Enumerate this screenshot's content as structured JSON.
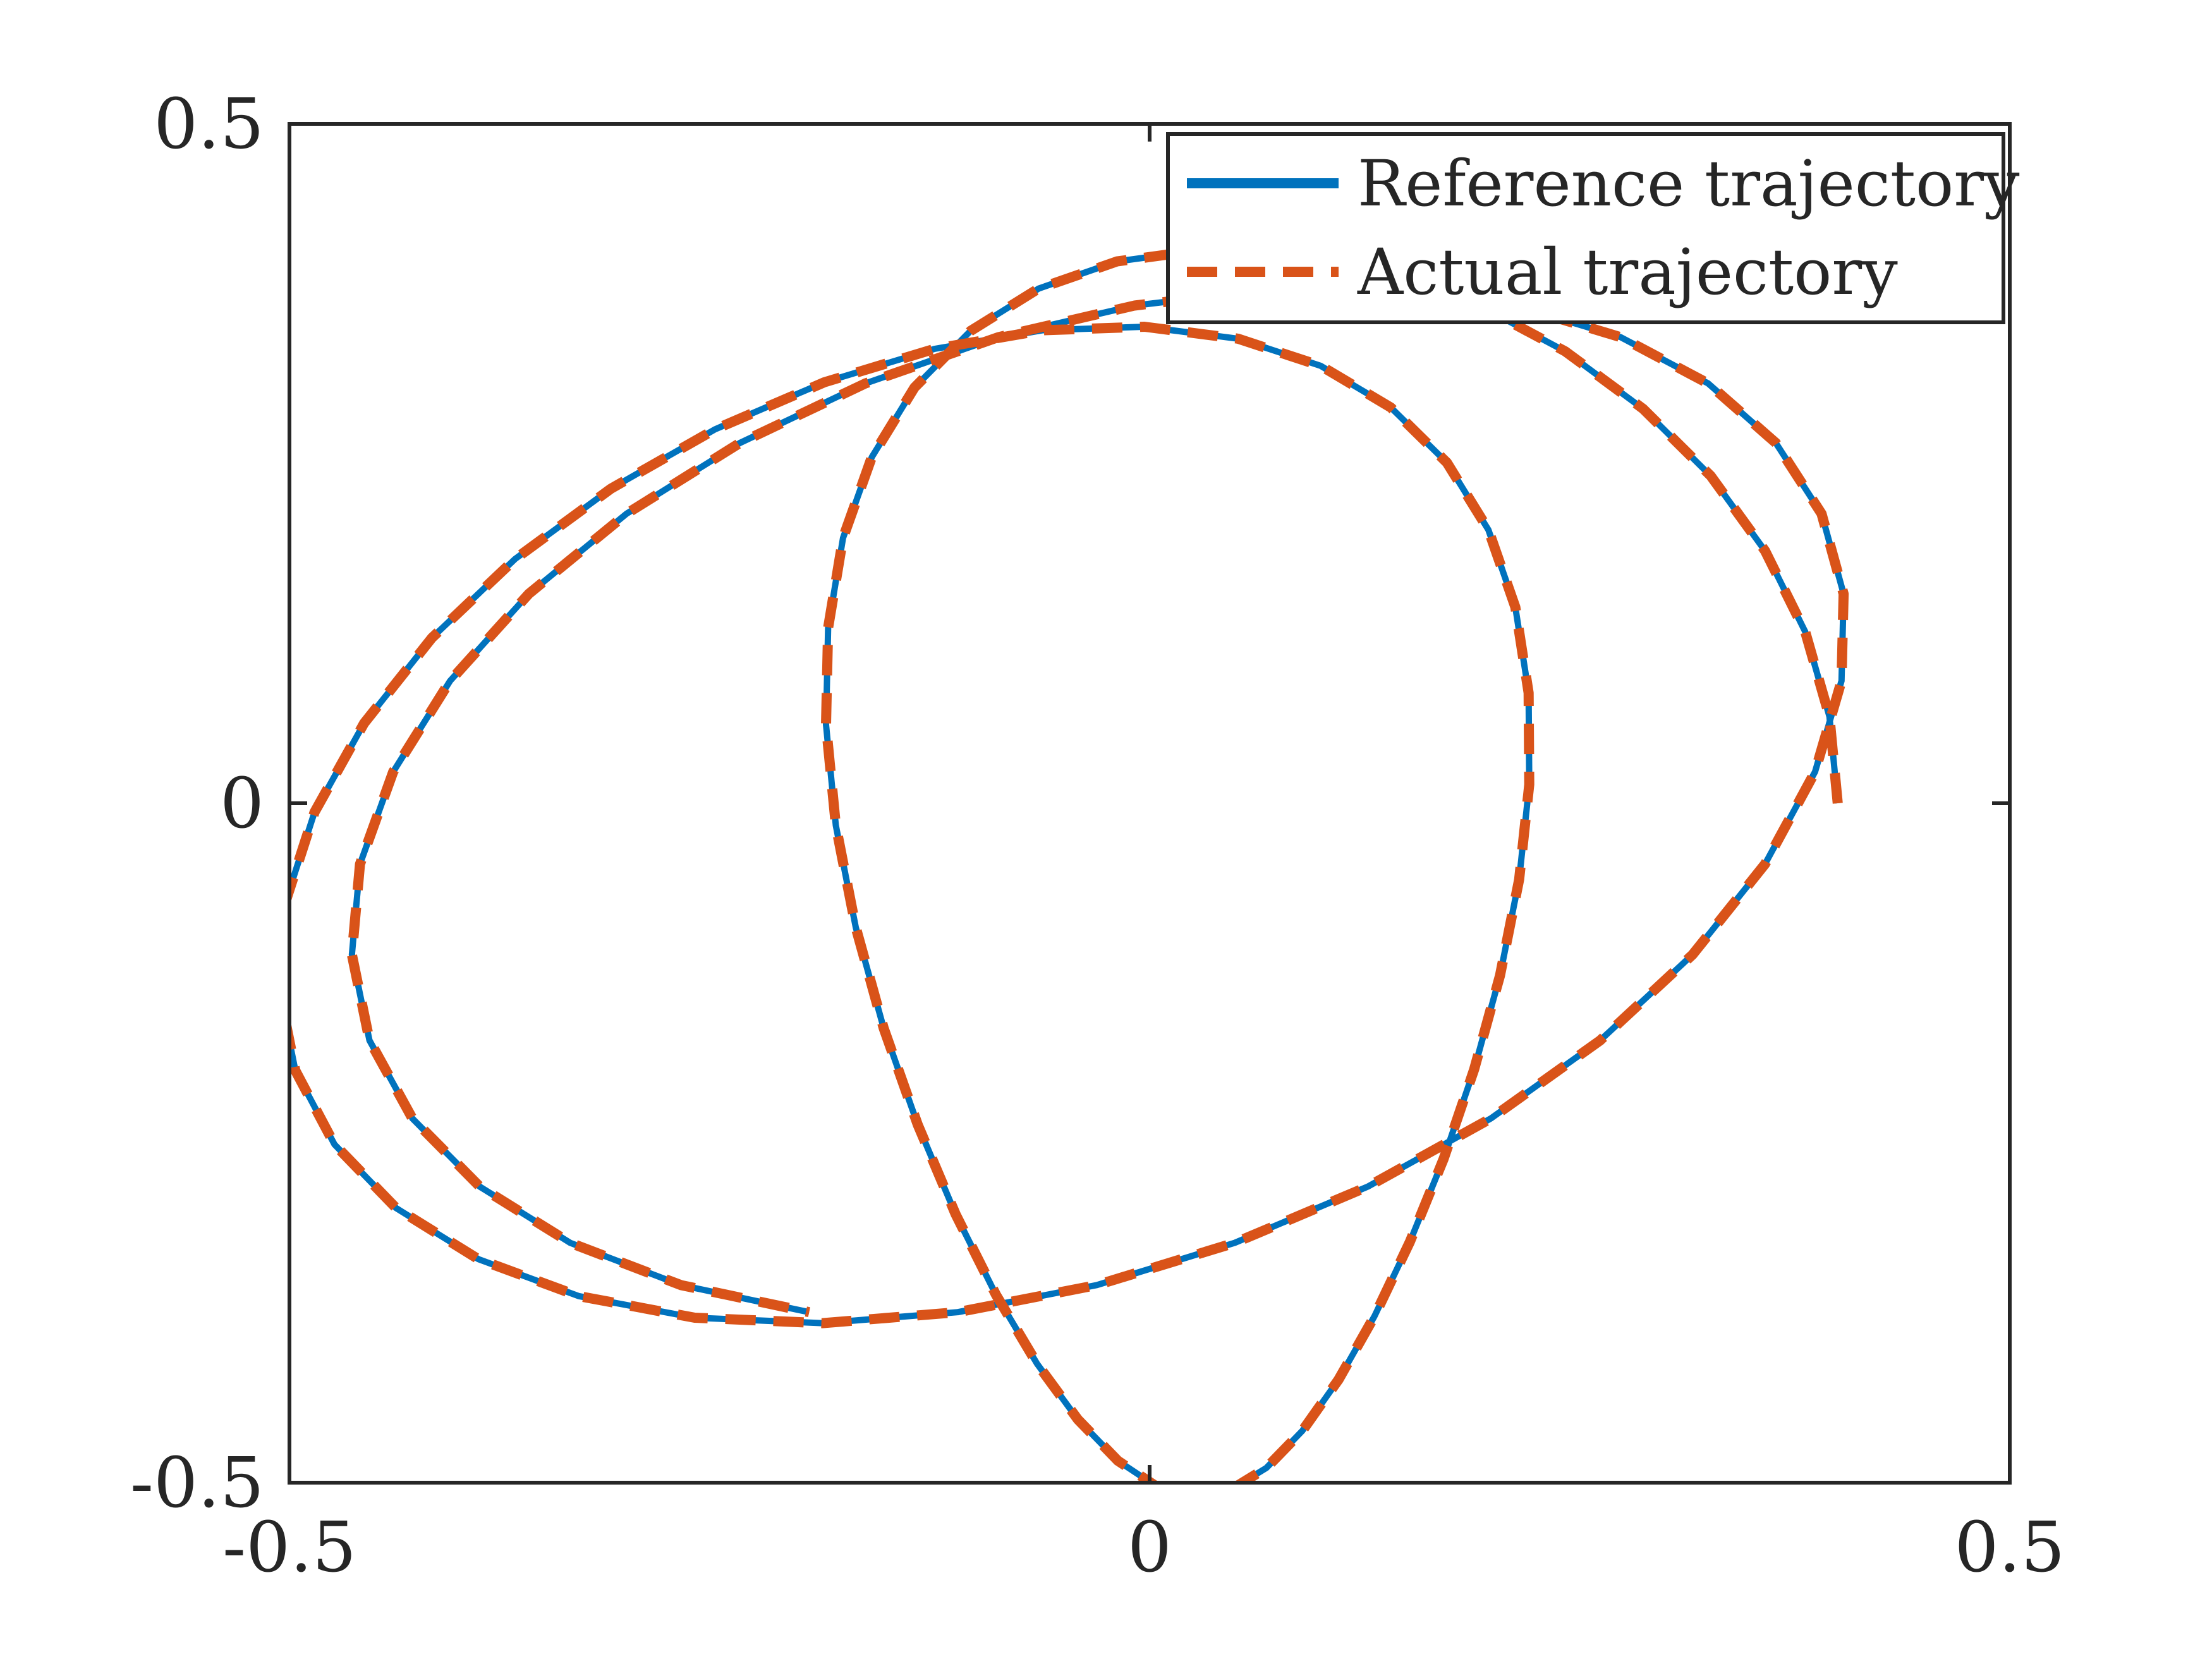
{
  "chart_data": {
    "type": "line",
    "title": "",
    "xlabel": "",
    "ylabel": "",
    "xlim": [
      -0.5,
      0.5
    ],
    "ylim": [
      -0.5,
      0.5
    ],
    "xticks": [
      "-0.5",
      "0",
      "0.5"
    ],
    "yticks": [
      "-0.5",
      "0",
      "0.5"
    ],
    "grid": false,
    "legend_placement": "top-right",
    "series": [
      {
        "name": "Reference trajectory",
        "style": "solid",
        "color": "#0072BD",
        "x": [
          0.4,
          0.3952,
          0.3811,
          0.3578,
          0.3262,
          0.2869,
          0.2416,
          0.1915,
          0.1385,
          0.0844,
          0.0313,
          -0.0189,
          -0.0645,
          -0.1041,
          -0.1367,
          -0.1615,
          -0.1782,
          -0.1869,
          -0.1881,
          -0.1824,
          -0.1708,
          -0.1546,
          -0.1348,
          -0.1127,
          -0.0893,
          -0.0654,
          -0.0417,
          -0.0184,
          0.004,
          0.0258,
          0.047,
          0.0679,
          0.0888,
          0.1098,
          0.1307,
          0.1513,
          0.1709,
          0.1887,
          0.2037,
          0.2148,
          0.2207,
          0.2203,
          0.2126,
          0.1969,
          0.1728,
          0.1402,
          0.0995,
          0.0514,
          -0.003,
          -0.0623,
          -0.125,
          -0.1891,
          -0.2526,
          -0.3132,
          -0.3688,
          -0.4172,
          -0.4566,
          -0.4854,
          -0.5022,
          -0.5061,
          -0.4966,
          -0.4738,
          -0.438,
          -0.3902,
          -0.3318,
          -0.2644,
          -0.1902,
          -0.1115,
          -0.0307,
          0.0495,
          0.1267,
          0.1983,
          0.2619,
          0.3156,
          0.3577,
          0.3868,
          0.4022,
          0.4034,
          0.3906,
          0.364,
          0.3247,
          0.2738,
          0.213,
          0.1441,
          0.0694,
          -0.0088,
          -0.0879,
          -0.1652,
          -0.2381,
          -0.304,
          -0.3609,
          -0.4066,
          -0.4397,
          -0.459,
          -0.4637,
          -0.4535,
          -0.4285,
          -0.3893,
          -0.3368,
          -0.2724,
          -0.1979
        ],
        "y": [
          0.0,
          0.0638,
          0.1262,
          0.1857,
          0.2409,
          0.2903,
          0.3326,
          0.3664,
          0.3907,
          0.4046,
          0.4074,
          0.3988,
          0.3788,
          0.3476,
          0.3059,
          0.2547,
          0.1952,
          0.129,
          0.0578,
          -0.0163,
          -0.0914,
          -0.1655,
          -0.2365,
          -0.3026,
          -0.3617,
          -0.4125,
          -0.4535,
          -0.4839,
          -0.5028,
          -0.51,
          -0.5054,
          -0.4891,
          -0.4618,
          -0.4242,
          -0.3775,
          -0.3228,
          -0.2617,
          -0.1957,
          -0.1266,
          -0.0561,
          0.0138,
          0.0812,
          0.1443,
          0.2013,
          0.2507,
          0.2913,
          0.3219,
          0.3419,
          0.3507,
          0.3481,
          0.3344,
          0.3098,
          0.2752,
          0.2315,
          0.1798,
          0.1217,
          0.0589,
          -0.0065,
          -0.0723,
          -0.1364,
          -0.1967,
          -0.2511,
          -0.2979,
          -0.3355,
          -0.3627,
          -0.3786,
          -0.3826,
          -0.3745,
          -0.3546,
          -0.3235,
          -0.2822,
          -0.232,
          -0.1745,
          -0.1114,
          -0.0448,
          0.0231,
          0.0901,
          0.1541,
          0.2131,
          0.2652,
          0.309,
          0.343,
          0.3663,
          0.3781,
          0.3781,
          0.3663,
          0.343,
          0.309,
          0.2652,
          0.2131,
          0.1541,
          0.0901,
          0.0231,
          -0.0448,
          -0.1114,
          -0.1745,
          -0.232,
          -0.2822,
          -0.3235,
          -0.3546,
          -0.3745
        ]
      },
      {
        "name": "Actual trajectory",
        "style": "dashed",
        "color": "#D95319",
        "x": [
          0.4,
          0.3952,
          0.3811,
          0.3578,
          0.3262,
          0.2869,
          0.2416,
          0.1915,
          0.1385,
          0.0844,
          0.0313,
          -0.0189,
          -0.0645,
          -0.1041,
          -0.1367,
          -0.1615,
          -0.1782,
          -0.1869,
          -0.1881,
          -0.1824,
          -0.1708,
          -0.1546,
          -0.1348,
          -0.1127,
          -0.0893,
          -0.0654,
          -0.0417,
          -0.0184,
          0.004,
          0.0258,
          0.047,
          0.0679,
          0.0888,
          0.1098,
          0.1307,
          0.1513,
          0.1709,
          0.1887,
          0.2037,
          0.2148,
          0.2207,
          0.2203,
          0.2126,
          0.1969,
          0.1728,
          0.1402,
          0.0995,
          0.0514,
          -0.003,
          -0.0623,
          -0.125,
          -0.1891,
          -0.2526,
          -0.3132,
          -0.3688,
          -0.4172,
          -0.4566,
          -0.4854,
          -0.5022,
          -0.5061,
          -0.4966,
          -0.4738,
          -0.438,
          -0.3902,
          -0.3318,
          -0.2644,
          -0.1902,
          -0.1115,
          -0.0307,
          0.0495,
          0.1267,
          0.1983,
          0.2619,
          0.3156,
          0.3577,
          0.3868,
          0.4022,
          0.4034,
          0.3906,
          0.364,
          0.3247,
          0.2738,
          0.213,
          0.1441,
          0.0694,
          -0.0088,
          -0.0879,
          -0.1652,
          -0.2381,
          -0.304,
          -0.3609,
          -0.4066,
          -0.4397,
          -0.459,
          -0.4637,
          -0.4535,
          -0.4285,
          -0.3893,
          -0.3368,
          -0.2724,
          -0.1979
        ],
        "y": [
          0.0,
          0.0638,
          0.1262,
          0.1857,
          0.2409,
          0.2903,
          0.3326,
          0.3664,
          0.3907,
          0.4046,
          0.4074,
          0.3988,
          0.3788,
          0.3476,
          0.3059,
          0.2547,
          0.1952,
          0.129,
          0.0578,
          -0.0163,
          -0.0914,
          -0.1655,
          -0.2365,
          -0.3026,
          -0.3617,
          -0.4125,
          -0.4535,
          -0.4839,
          -0.5028,
          -0.51,
          -0.5054,
          -0.4891,
          -0.4618,
          -0.4242,
          -0.3775,
          -0.3228,
          -0.2617,
          -0.1957,
          -0.1266,
          -0.0561,
          0.0138,
          0.0812,
          0.1443,
          0.2013,
          0.2507,
          0.2913,
          0.3219,
          0.3419,
          0.3507,
          0.3481,
          0.3344,
          0.3098,
          0.2752,
          0.2315,
          0.1798,
          0.1217,
          0.0589,
          -0.0065,
          -0.0723,
          -0.1364,
          -0.1967,
          -0.2511,
          -0.2979,
          -0.3355,
          -0.3627,
          -0.3786,
          -0.3826,
          -0.3745,
          -0.3546,
          -0.3235,
          -0.2822,
          -0.232,
          -0.1745,
          -0.1114,
          -0.0448,
          0.0231,
          0.0901,
          0.1541,
          0.2131,
          0.2652,
          0.309,
          0.343,
          0.3663,
          0.3781,
          0.3781,
          0.3663,
          0.343,
          0.309,
          0.2652,
          0.2131,
          0.1541,
          0.0901,
          0.0231,
          -0.0448,
          -0.1114,
          -0.1745,
          -0.232,
          -0.2822,
          -0.3235,
          -0.3546,
          -0.3745
        ]
      }
    ]
  }
}
